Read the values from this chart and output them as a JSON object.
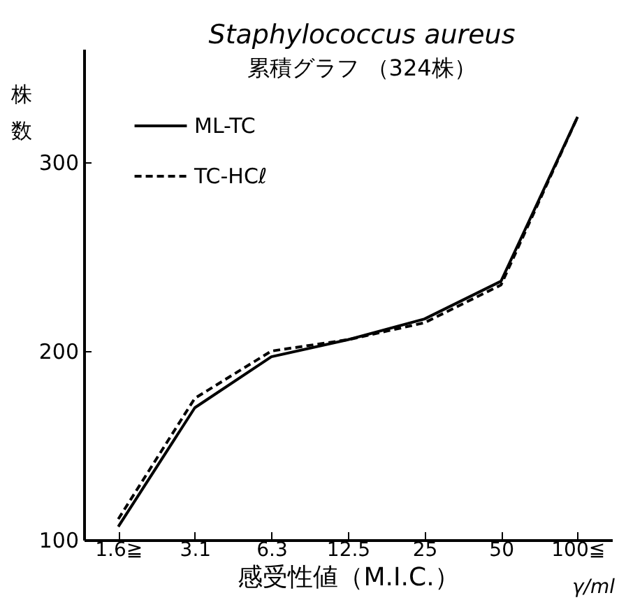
{
  "chart_data": {
    "type": "line",
    "title": "Staphylococcus aureus",
    "subtitle": "累積グラフ （324株）",
    "xlabel": "感受性値（M.I.C.）",
    "ylabel": "株数",
    "categories": [
      "1.6≧",
      "3.1",
      "6.3",
      "12.5",
      "25",
      "50",
      "100≦"
    ],
    "series": [
      {
        "name": "ML-TC",
        "color": "#000000",
        "line_style": "solid",
        "values": [
          107,
          170,
          197,
          206,
          217,
          237,
          324
        ]
      },
      {
        "name": "TC-HCℓ",
        "color": "#000000",
        "line_style": "dashed",
        "values": [
          111,
          175,
          200,
          206,
          215,
          235,
          324
        ]
      }
    ],
    "ylim": [
      100,
      360
    ],
    "yticks": [
      100,
      200,
      300
    ],
    "grid": false,
    "legend": "top left",
    "marker": "none",
    "annotations": [
      "γ/ml"
    ]
  }
}
